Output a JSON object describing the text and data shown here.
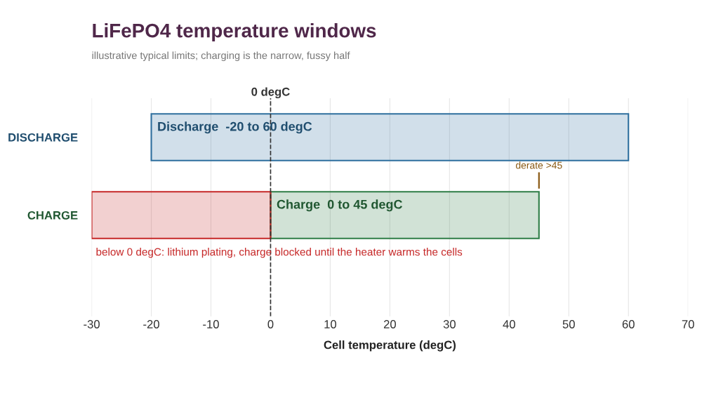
{
  "chart_data": {
    "type": "bar",
    "orientation": "horizontal",
    "title": "LiFePO4 temperature windows",
    "subtitle": "illustrative typical limits; charging is the narrow, fussy half",
    "xlabel": "Cell temperature (degC)",
    "categories": [
      "DISCHARGE",
      "CHARGE"
    ],
    "series": [
      {
        "values": [
          80,
          null
        ],
        "base": [
          -20,
          null
        ],
        "color": "#2e6f9e"
      },
      {
        "values": [
          null,
          45
        ],
        "base": [
          null,
          0
        ],
        "color": "#2e7d46"
      },
      {
        "values": [
          null,
          30
        ],
        "base": [
          null,
          -30
        ],
        "color": "#c62828"
      }
    ],
    "xlim": [
      -30,
      70
    ],
    "xticks": [
      -30,
      -20,
      -10,
      0,
      10,
      20,
      30,
      40,
      50,
      60,
      70
    ],
    "grid": "x",
    "ref_lines": [
      {
        "axis": "x",
        "value": 0,
        "label": "0 degC",
        "color": "#333333",
        "line_style": "dashed"
      }
    ],
    "annotations": [
      {
        "text": "Discharge  -20 to 60 degC",
        "x": -20,
        "y": "DISCHARGE"
      },
      {
        "text": "Charge  0 to 45 degC",
        "x": 0,
        "y": "CHARGE"
      },
      "derate >45",
      "below 0 degC: lithium plating, charge blocked until the heater warms the cells"
    ]
  }
}
